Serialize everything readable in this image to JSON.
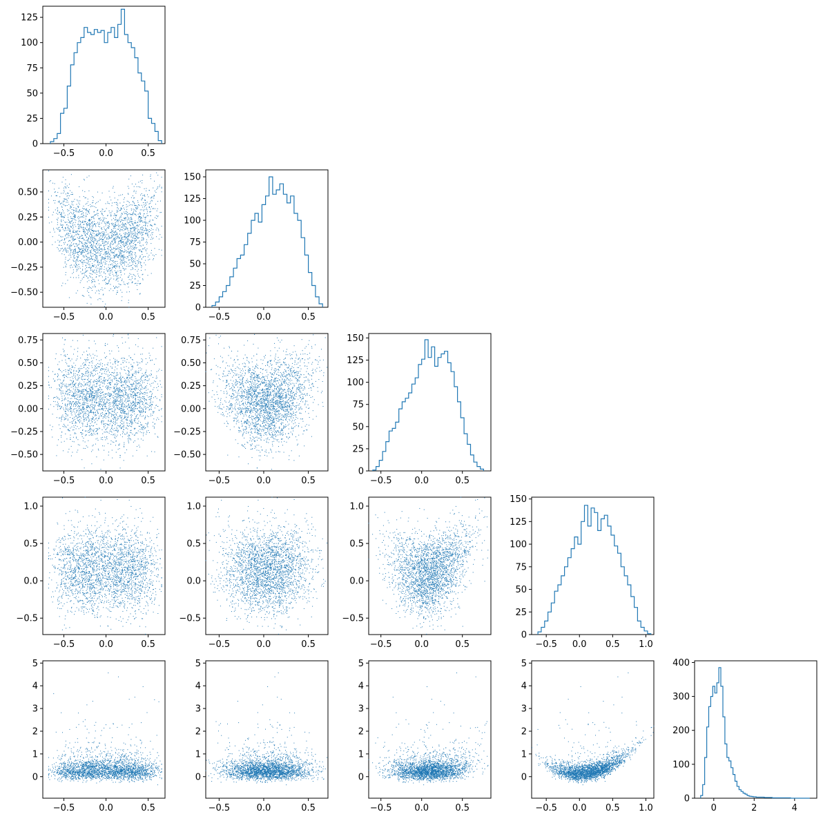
{
  "chart_data": {
    "type": "corner-plot",
    "title": "",
    "grid": false,
    "colors": {
      "series": "#1f77b4",
      "axes": "#000000"
    },
    "variables": 5,
    "histograms": [
      {
        "var": 0,
        "type": "step-histogram",
        "xlim": [
          -0.75,
          0.7
        ],
        "ylim": [
          0,
          136
        ],
        "xticks": [
          -0.5,
          0.0,
          0.5
        ],
        "xtick_labels": [
          "−0.5",
          "0.0",
          "0.5"
        ],
        "yticks": [
          0,
          25,
          50,
          75,
          100,
          125
        ],
        "ytick_labels": [
          "0",
          "25",
          "50",
          "75",
          "100",
          "125"
        ],
        "bin_centers": [
          -0.64,
          -0.6,
          -0.56,
          -0.52,
          -0.48,
          -0.44,
          -0.4,
          -0.36,
          -0.32,
          -0.28,
          -0.24,
          -0.2,
          -0.16,
          -0.12,
          -0.08,
          -0.04,
          0.0,
          0.04,
          0.08,
          0.12,
          0.16,
          0.2,
          0.24,
          0.28,
          0.32,
          0.36,
          0.4,
          0.44,
          0.48,
          0.52,
          0.56,
          0.6,
          0.64
        ],
        "counts": [
          2,
          5,
          10,
          30,
          35,
          57,
          78,
          90,
          100,
          105,
          115,
          110,
          108,
          113,
          110,
          112,
          100,
          110,
          115,
          105,
          118,
          133,
          108,
          100,
          95,
          85,
          70,
          62,
          52,
          25,
          20,
          12,
          3
        ]
      },
      {
        "var": 1,
        "type": "step-histogram",
        "xlim": [
          -0.65,
          0.72
        ],
        "ylim": [
          0,
          158
        ],
        "xticks": [
          -0.5,
          0.0,
          0.5
        ],
        "xtick_labels": [
          "−0.5",
          "0.0",
          "0.5"
        ],
        "yticks": [
          0,
          25,
          50,
          75,
          100,
          125,
          150
        ],
        "ytick_labels": [
          "0",
          "25",
          "50",
          "75",
          "100",
          "125",
          "150"
        ],
        "bin_centers": [
          -0.56,
          -0.52,
          -0.48,
          -0.44,
          -0.4,
          -0.36,
          -0.32,
          -0.28,
          -0.24,
          -0.2,
          -0.16,
          -0.12,
          -0.08,
          -0.04,
          0.0,
          0.04,
          0.08,
          0.12,
          0.16,
          0.2,
          0.24,
          0.28,
          0.32,
          0.36,
          0.4,
          0.44,
          0.48,
          0.52,
          0.56,
          0.6,
          0.64
        ],
        "counts": [
          2,
          6,
          12,
          18,
          25,
          35,
          45,
          56,
          60,
          72,
          85,
          100,
          108,
          98,
          118,
          128,
          150,
          130,
          135,
          142,
          130,
          120,
          128,
          108,
          100,
          80,
          60,
          40,
          25,
          12,
          4
        ]
      },
      {
        "var": 2,
        "type": "step-histogram",
        "xlim": [
          -0.65,
          0.85
        ],
        "ylim": [
          0,
          155
        ],
        "xticks": [
          -0.5,
          0.0,
          0.5
        ],
        "xtick_labels": [
          "−0.5",
          "0.0",
          "0.5"
        ],
        "yticks": [
          0,
          25,
          50,
          75,
          100,
          125,
          150
        ],
        "ytick_labels": [
          "0",
          "25",
          "50",
          "75",
          "100",
          "125",
          "150"
        ],
        "bin_centers": [
          -0.58,
          -0.54,
          -0.5,
          -0.46,
          -0.42,
          -0.38,
          -0.34,
          -0.3,
          -0.26,
          -0.22,
          -0.18,
          -0.14,
          -0.1,
          -0.06,
          -0.02,
          0.02,
          0.06,
          0.1,
          0.14,
          0.18,
          0.22,
          0.26,
          0.3,
          0.34,
          0.38,
          0.42,
          0.46,
          0.5,
          0.54,
          0.58,
          0.62,
          0.66,
          0.7,
          0.74
        ],
        "counts": [
          1,
          5,
          12,
          22,
          33,
          45,
          48,
          55,
          70,
          78,
          82,
          88,
          98,
          105,
          120,
          126,
          148,
          128,
          140,
          118,
          128,
          132,
          135,
          122,
          112,
          95,
          78,
          60,
          42,
          30,
          18,
          10,
          5,
          2
        ]
      },
      {
        "var": 3,
        "type": "step-histogram",
        "xlim": [
          -0.72,
          1.12
        ],
        "ylim": [
          0,
          152
        ],
        "xticks": [
          -0.5,
          0.0,
          0.5,
          1.0
        ],
        "xtick_labels": [
          "−0.5",
          "0.0",
          "0.5",
          "1.0"
        ],
        "yticks": [
          0,
          25,
          50,
          75,
          100,
          125,
          150
        ],
        "ytick_labels": [
          "0",
          "25",
          "50",
          "75",
          "100",
          "125",
          "150"
        ],
        "bin_centers": [
          -0.6,
          -0.55,
          -0.5,
          -0.45,
          -0.4,
          -0.35,
          -0.3,
          -0.25,
          -0.2,
          -0.15,
          -0.1,
          -0.05,
          0.0,
          0.05,
          0.1,
          0.15,
          0.2,
          0.25,
          0.3,
          0.35,
          0.4,
          0.45,
          0.5,
          0.55,
          0.6,
          0.65,
          0.7,
          0.75,
          0.8,
          0.85,
          0.9,
          0.95,
          1.0,
          1.05
        ],
        "counts": [
          3,
          8,
          15,
          25,
          35,
          48,
          55,
          65,
          75,
          85,
          95,
          108,
          100,
          125,
          143,
          120,
          140,
          135,
          115,
          128,
          132,
          120,
          110,
          98,
          90,
          75,
          65,
          55,
          42,
          30,
          15,
          8,
          4,
          1
        ]
      },
      {
        "var": 4,
        "type": "step-histogram",
        "xlim": [
          -0.95,
          5.1
        ],
        "ylim": [
          0,
          405
        ],
        "xticks": [
          0,
          2,
          4
        ],
        "xtick_labels": [
          "0",
          "2",
          "4"
        ],
        "yticks": [
          0,
          100,
          200,
          300,
          400
        ],
        "ytick_labels": [
          "0",
          "100",
          "200",
          "300",
          "400"
        ],
        "bin_centers": [
          -0.6,
          -0.5,
          -0.4,
          -0.3,
          -0.2,
          -0.1,
          0.0,
          0.1,
          0.2,
          0.3,
          0.4,
          0.5,
          0.6,
          0.7,
          0.8,
          0.9,
          1.0,
          1.1,
          1.2,
          1.3,
          1.4,
          1.5,
          1.6,
          1.7,
          1.8,
          1.9,
          2.0,
          2.2,
          2.4,
          2.6,
          2.8,
          3.0,
          3.3,
          3.6,
          4.0,
          4.5
        ],
        "counts": [
          8,
          40,
          120,
          210,
          270,
          300,
          330,
          310,
          340,
          385,
          330,
          240,
          160,
          120,
          110,
          90,
          70,
          50,
          35,
          25,
          20,
          15,
          12,
          8,
          6,
          5,
          4,
          3,
          3,
          2,
          2,
          1,
          1,
          1,
          0,
          0
        ]
      }
    ],
    "scatter_panels": [
      {
        "row": 1,
        "col": 0,
        "x_var": 0,
        "y_var": 1,
        "xlim": [
          -0.75,
          0.7
        ],
        "ylim": [
          -0.65,
          0.72
        ],
        "xticks": [
          -0.5,
          0.0,
          0.5
        ],
        "xtick_labels": [
          "−0.5",
          "0.0",
          "0.5"
        ],
        "yticks": [
          -0.5,
          -0.25,
          0.0,
          0.25,
          0.5
        ],
        "ytick_labels": [
          "−0.50",
          "−0.25",
          "0.00",
          "0.25",
          "0.50"
        ]
      },
      {
        "row": 2,
        "col": 0,
        "x_var": 0,
        "y_var": 2,
        "xlim": [
          -0.75,
          0.7
        ],
        "ylim": [
          -0.68,
          0.82
        ],
        "xticks": [
          -0.5,
          0.0,
          0.5
        ],
        "xtick_labels": [
          "−0.5",
          "0.0",
          "0.5"
        ],
        "yticks": [
          -0.5,
          -0.25,
          0.0,
          0.25,
          0.5,
          0.75
        ],
        "ytick_labels": [
          "−0.50",
          "−0.25",
          "0.00",
          "0.25",
          "0.50",
          "0.75"
        ]
      },
      {
        "row": 2,
        "col": 1,
        "x_var": 1,
        "y_var": 2,
        "xlim": [
          -0.65,
          0.72
        ],
        "ylim": [
          -0.68,
          0.82
        ],
        "xticks": [
          -0.5,
          0.0,
          0.5
        ],
        "xtick_labels": [
          "−0.5",
          "0.0",
          "0.5"
        ],
        "yticks": [
          -0.5,
          -0.25,
          0.0,
          0.25,
          0.5,
          0.75
        ],
        "ytick_labels": [
          "−0.50",
          "−0.25",
          "0.00",
          "0.25",
          "0.50",
          "0.75"
        ]
      },
      {
        "row": 3,
        "col": 0,
        "x_var": 0,
        "y_var": 3,
        "xlim": [
          -0.75,
          0.7
        ],
        "ylim": [
          -0.72,
          1.12
        ],
        "xticks": [
          -0.5,
          0.0,
          0.5
        ],
        "xtick_labels": [
          "−0.5",
          "0.0",
          "0.5"
        ],
        "yticks": [
          -0.5,
          0.0,
          0.5,
          1.0
        ],
        "ytick_labels": [
          "−0.5",
          "0.0",
          "0.5",
          "1.0"
        ]
      },
      {
        "row": 3,
        "col": 1,
        "x_var": 1,
        "y_var": 3,
        "xlim": [
          -0.65,
          0.72
        ],
        "ylim": [
          -0.72,
          1.12
        ],
        "xticks": [
          -0.5,
          0.0,
          0.5
        ],
        "xtick_labels": [
          "−0.5",
          "0.0",
          "0.5"
        ],
        "yticks": [
          -0.5,
          0.0,
          0.5,
          1.0
        ],
        "ytick_labels": [
          "−0.5",
          "0.0",
          "0.5",
          "1.0"
        ]
      },
      {
        "row": 3,
        "col": 2,
        "x_var": 2,
        "y_var": 3,
        "xlim": [
          -0.65,
          0.85
        ],
        "ylim": [
          -0.72,
          1.12
        ],
        "xticks": [
          -0.5,
          0.0,
          0.5
        ],
        "xtick_labels": [
          "−0.5",
          "0.0",
          "0.5"
        ],
        "yticks": [
          -0.5,
          0.0,
          0.5,
          1.0
        ],
        "ytick_labels": [
          "−0.5",
          "0.0",
          "0.5",
          "1.0"
        ]
      },
      {
        "row": 4,
        "col": 0,
        "x_var": 0,
        "y_var": 4,
        "xlim": [
          -0.75,
          0.7
        ],
        "ylim": [
          -0.95,
          5.1
        ],
        "xticks": [
          -0.5,
          0.0,
          0.5
        ],
        "xtick_labels": [
          "−0.5",
          "0.0",
          "0.5"
        ],
        "yticks": [
          0,
          1,
          2,
          3,
          4,
          5
        ],
        "ytick_labels": [
          "0",
          "1",
          "2",
          "3",
          "4",
          "5"
        ]
      },
      {
        "row": 4,
        "col": 1,
        "x_var": 1,
        "y_var": 4,
        "xlim": [
          -0.65,
          0.72
        ],
        "ylim": [
          -0.95,
          5.1
        ],
        "xticks": [
          -0.5,
          0.0,
          0.5
        ],
        "xtick_labels": [
          "−0.5",
          "0.0",
          "0.5"
        ],
        "yticks": [
          0,
          1,
          2,
          3,
          4,
          5
        ],
        "ytick_labels": [
          "0",
          "1",
          "2",
          "3",
          "4",
          "5"
        ]
      },
      {
        "row": 4,
        "col": 2,
        "x_var": 2,
        "y_var": 4,
        "xlim": [
          -0.65,
          0.85
        ],
        "ylim": [
          -0.95,
          5.1
        ],
        "xticks": [
          -0.5,
          0.0,
          0.5
        ],
        "xtick_labels": [
          "−0.5",
          "0.0",
          "0.5"
        ],
        "yticks": [
          0,
          1,
          2,
          3,
          4,
          5
        ],
        "ytick_labels": [
          "0",
          "1",
          "2",
          "3",
          "4",
          "5"
        ]
      },
      {
        "row": 4,
        "col": 3,
        "x_var": 3,
        "y_var": 4,
        "xlim": [
          -0.72,
          1.12
        ],
        "ylim": [
          -0.95,
          5.1
        ],
        "xticks": [
          -0.5,
          0.0,
          0.5,
          1.0
        ],
        "xtick_labels": [
          "−0.5",
          "0.0",
          "0.5",
          "1.0"
        ],
        "yticks": [
          0,
          1,
          2,
          3,
          4,
          5
        ],
        "ytick_labels": [
          "0",
          "1",
          "2",
          "3",
          "4",
          "5"
        ]
      }
    ]
  }
}
